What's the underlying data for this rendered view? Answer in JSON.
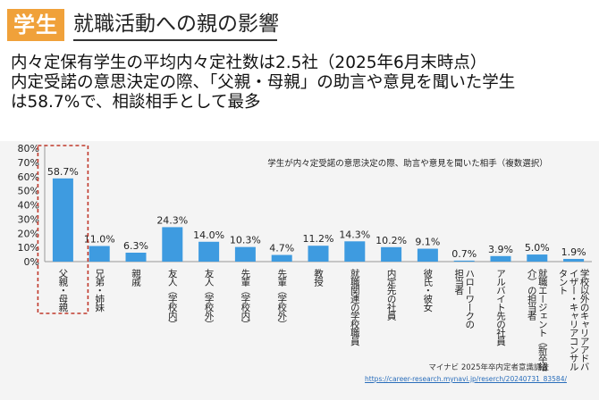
{
  "header": {
    "tag": "学生",
    "title": "就職活動への親の影響"
  },
  "subtitle": {
    "line1": "内々定保有学生の平均内々定社数は2.5社（2025年6月末時点）",
    "line2": "内定受諾の意思決定の際、「父親・母親」の助言や意見を聞いた学生",
    "line3": "は58.7%で、相談相手として最多"
  },
  "chart_data": {
    "type": "bar",
    "title": "学生が内々定受諾の意思決定の際、助言や意見を聞いた相手（複数選択）",
    "categories": [
      "父親・母親",
      "兄弟・姉妹",
      "親戚",
      "友人（学校内）",
      "友人（学校外）",
      "先輩（学校内）",
      "先輩（学校外）",
      "教授",
      "就職関連の学校職員",
      "内定先の社員",
      "彼氏・彼女",
      "ハローワークの担当者",
      "アルバイト先の社員",
      "就職エージェント（新卒紹介）の担当者",
      "学校以外のキャリアアドバイザー・キャリアコンサルタント"
    ],
    "labels": [
      [
        "父親・母親"
      ],
      [
        "兄弟・姉妹"
      ],
      [
        "親戚"
      ],
      [
        "友人（学校内）"
      ],
      [
        "友人（学校外）"
      ],
      [
        "先輩（学校内）"
      ],
      [
        "先輩（学校外）"
      ],
      [
        "教授"
      ],
      [
        "就職関連の学校職員"
      ],
      [
        "内定先の社員"
      ],
      [
        "彼氏・彼女"
      ],
      [
        "ハローワークの",
        "担当者"
      ],
      [
        "アルバイト先の社員"
      ],
      [
        "就職エージェント（新卒紹",
        "介）の担当者"
      ],
      [
        "学校以外のキャリアアドバ",
        "イザー・キャリアコンサル",
        "タント"
      ]
    ],
    "values": [
      58.7,
      11.0,
      6.3,
      24.3,
      14.0,
      10.3,
      4.7,
      11.2,
      14.3,
      10.2,
      9.1,
      0.7,
      3.9,
      5.0,
      1.9
    ],
    "value_labels": [
      "58.7%",
      "11.0%",
      "6.3%",
      "24.3%",
      "14.0%",
      "10.3%",
      "4.7%",
      "11.2%",
      "14.3%",
      "10.2%",
      "9.1%",
      "0.7%",
      "3.9%",
      "5.0%",
      "1.9%"
    ],
    "y_ticks": [
      "0%",
      "10%",
      "20%",
      "30%",
      "40%",
      "50%",
      "60%",
      "70%",
      "80%"
    ],
    "ylim": [
      0,
      80
    ],
    "highlight_index": 0,
    "bar_color": "#3e9be0",
    "highlight_color": "#c0392b"
  },
  "footer": {
    "source": "マイナビ 2025年卒内定者意識調査",
    "url": "https://career-research.mynavi.jp/reserch/20240731_83584/"
  }
}
